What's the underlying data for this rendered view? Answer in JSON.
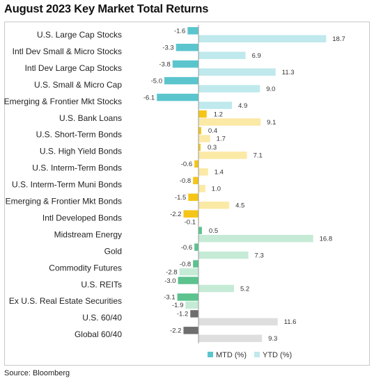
{
  "title": "August 2023 Key Market Total Returns",
  "source": "Source: Bloomberg",
  "colors": {
    "equity_mtd": "#5bc5ce",
    "equity_ytd": "#bfe9ec",
    "bond_mtd": "#f5c518",
    "bond_ytd": "#fbe9a6",
    "real_mtd": "#5cc28e",
    "real_ytd": "#c5ebd6",
    "multi_mtd": "#6e6e6e",
    "multi_ytd": "#dedede",
    "axis": "#9a9a9a"
  },
  "chart_data": {
    "type": "bar",
    "orientation": "horizontal",
    "categories": [
      "U.S. Large Cap Stocks",
      "Intl Dev Small & Micro Stocks",
      "Intl Dev Large Cap Stocks",
      "U.S. Small & Micro Cap",
      "Emerging & Frontier Mkt Stocks",
      "U.S. Bank Loans",
      "U.S. Short-Term Bonds",
      "U.S. High Yield Bonds",
      "U.S. Interm-Term Bonds",
      "U.S. Interm-Term Muni Bonds",
      "Emerging & Frontier Mkt Bonds",
      "Intl Developed Bonds",
      "Midstream Energy",
      "Gold",
      "Commodity Futures",
      "U.S. REITs",
      "Ex U.S. Real Estate Securities",
      "U.S. 60/40",
      "Global 60/40"
    ],
    "groups": [
      "equity",
      "equity",
      "equity",
      "equity",
      "equity",
      "bond",
      "bond",
      "bond",
      "bond",
      "bond",
      "bond",
      "bond",
      "real",
      "real",
      "real",
      "real",
      "real",
      "multi",
      "multi"
    ],
    "series": [
      {
        "name": "MTD (%)",
        "values": [
          -1.6,
          -3.3,
          -3.8,
          -5.0,
          -6.1,
          1.2,
          0.4,
          0.3,
          -0.6,
          -0.8,
          -1.5,
          -2.2,
          0.5,
          -0.6,
          -0.8,
          -3.0,
          -3.1,
          -1.2,
          -2.2
        ]
      },
      {
        "name": "YTD (%)",
        "values": [
          18.7,
          6.9,
          11.3,
          9.0,
          4.9,
          9.1,
          1.7,
          7.1,
          1.4,
          1.0,
          4.5,
          -0.1,
          16.8,
          7.3,
          -2.8,
          5.2,
          -1.9,
          11.6,
          9.3
        ]
      }
    ],
    "value_labels": {
      "mtd": [
        "-1.6",
        "-3.3",
        "-3.8",
        "-5.0",
        "-6.1",
        "1.2",
        "0.4",
        "0.3",
        "-0.6",
        "-0.8",
        "-1.5",
        "-2.2",
        "0.5",
        "-0.6",
        "-0.8",
        "-3.0",
        "-3.1",
        "-1.2",
        "-2.2"
      ],
      "ytd": [
        "18.7",
        "6.9",
        "11.3",
        "9.0",
        "4.9",
        "9.1",
        "1.7",
        "7.1",
        "1.4",
        "1.0",
        "4.5",
        "-0.1",
        "16.8",
        "7.3",
        "-2.8",
        "5.2",
        "-1.9",
        "11.6",
        "9.3"
      ]
    },
    "xlim": [
      -8.5,
      20.5
    ],
    "grid": false,
    "legend_position": "bottom-center",
    "legend": [
      "MTD (%)",
      "YTD (%)"
    ]
  }
}
